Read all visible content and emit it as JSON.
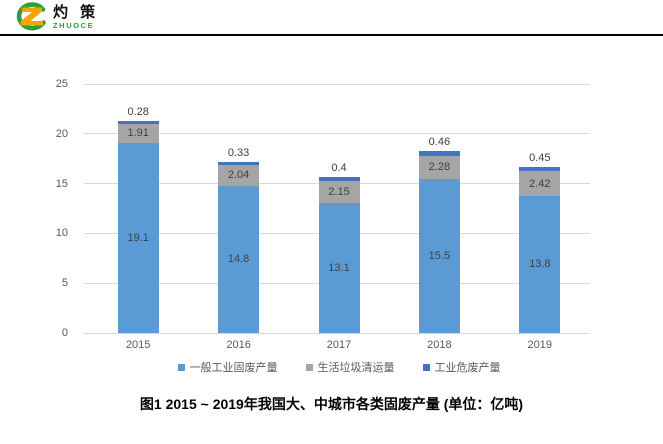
{
  "logo": {
    "cn": "灼 策",
    "en": "ZHUOCE"
  },
  "caption": "图1  2015 ~ 2019年我国大、中城市各类固废产量 (单位：亿吨)",
  "colors": {
    "series_general": "#5B9BD5",
    "series_household": "#A5A5A5",
    "series_hazardous": "#4472C4",
    "gridline": "#D9D9D9",
    "axis_text": "#595959",
    "label_text": "#404040",
    "logo_green": "#2F9E41",
    "logo_orange": "#F6A500",
    "divider": "#000000"
  },
  "chart_data": {
    "type": "bar",
    "stacked": true,
    "title": "",
    "xlabel": "",
    "ylabel": "",
    "categories": [
      "2015",
      "2016",
      "2017",
      "2018",
      "2019"
    ],
    "series": [
      {
        "name": "一般工业固废产量",
        "color": "#5B9BD5",
        "label_position": "inside",
        "values": [
          19.1,
          14.8,
          13.1,
          15.5,
          13.8
        ]
      },
      {
        "name": "生活垃圾清运量",
        "color": "#A5A5A5",
        "label_position": "inside",
        "values": [
          1.91,
          2.04,
          2.15,
          2.28,
          2.42
        ]
      },
      {
        "name": "工业危废产量",
        "color": "#4472C4",
        "label_position": "above",
        "values": [
          0.28,
          0.33,
          0.4,
          0.46,
          0.45
        ]
      }
    ],
    "totals": [
      21.29,
      17.17,
      15.65,
      18.24,
      16.67
    ],
    "ylim": [
      0,
      25
    ],
    "yticks": [
      0,
      5,
      10,
      15,
      20,
      25
    ],
    "grid": true,
    "legend_position": "bottom"
  }
}
